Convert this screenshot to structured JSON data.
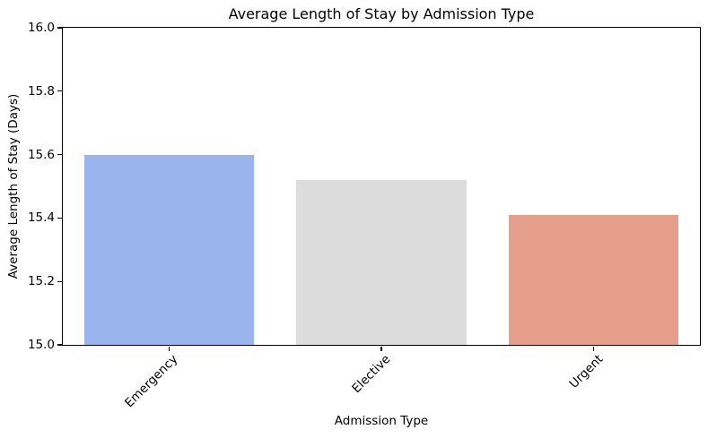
{
  "figure": {
    "background_color": "#ffffff",
    "text_color": "#000000",
    "spine_color": "#000000"
  },
  "chart_data": {
    "type": "bar",
    "title": "Average Length of Stay by Admission Type",
    "xlabel": "Admission Type",
    "ylabel": "Average Length of Stay (Days)",
    "categories": [
      "Emergency",
      "Elective",
      "Urgent"
    ],
    "values": [
      15.6,
      15.52,
      15.41
    ],
    "bar_colors": [
      "#9ab4ee",
      "#dcdcdc",
      "#e49e8a"
    ],
    "ylim": [
      15.0,
      16.0
    ],
    "ytick_labels": [
      "15.0",
      "15.2",
      "15.4",
      "15.6",
      "15.8",
      "16.0"
    ],
    "xtick_rotation_deg": 45,
    "bar_width_fraction": 0.8,
    "grid": false,
    "legend": false
  }
}
